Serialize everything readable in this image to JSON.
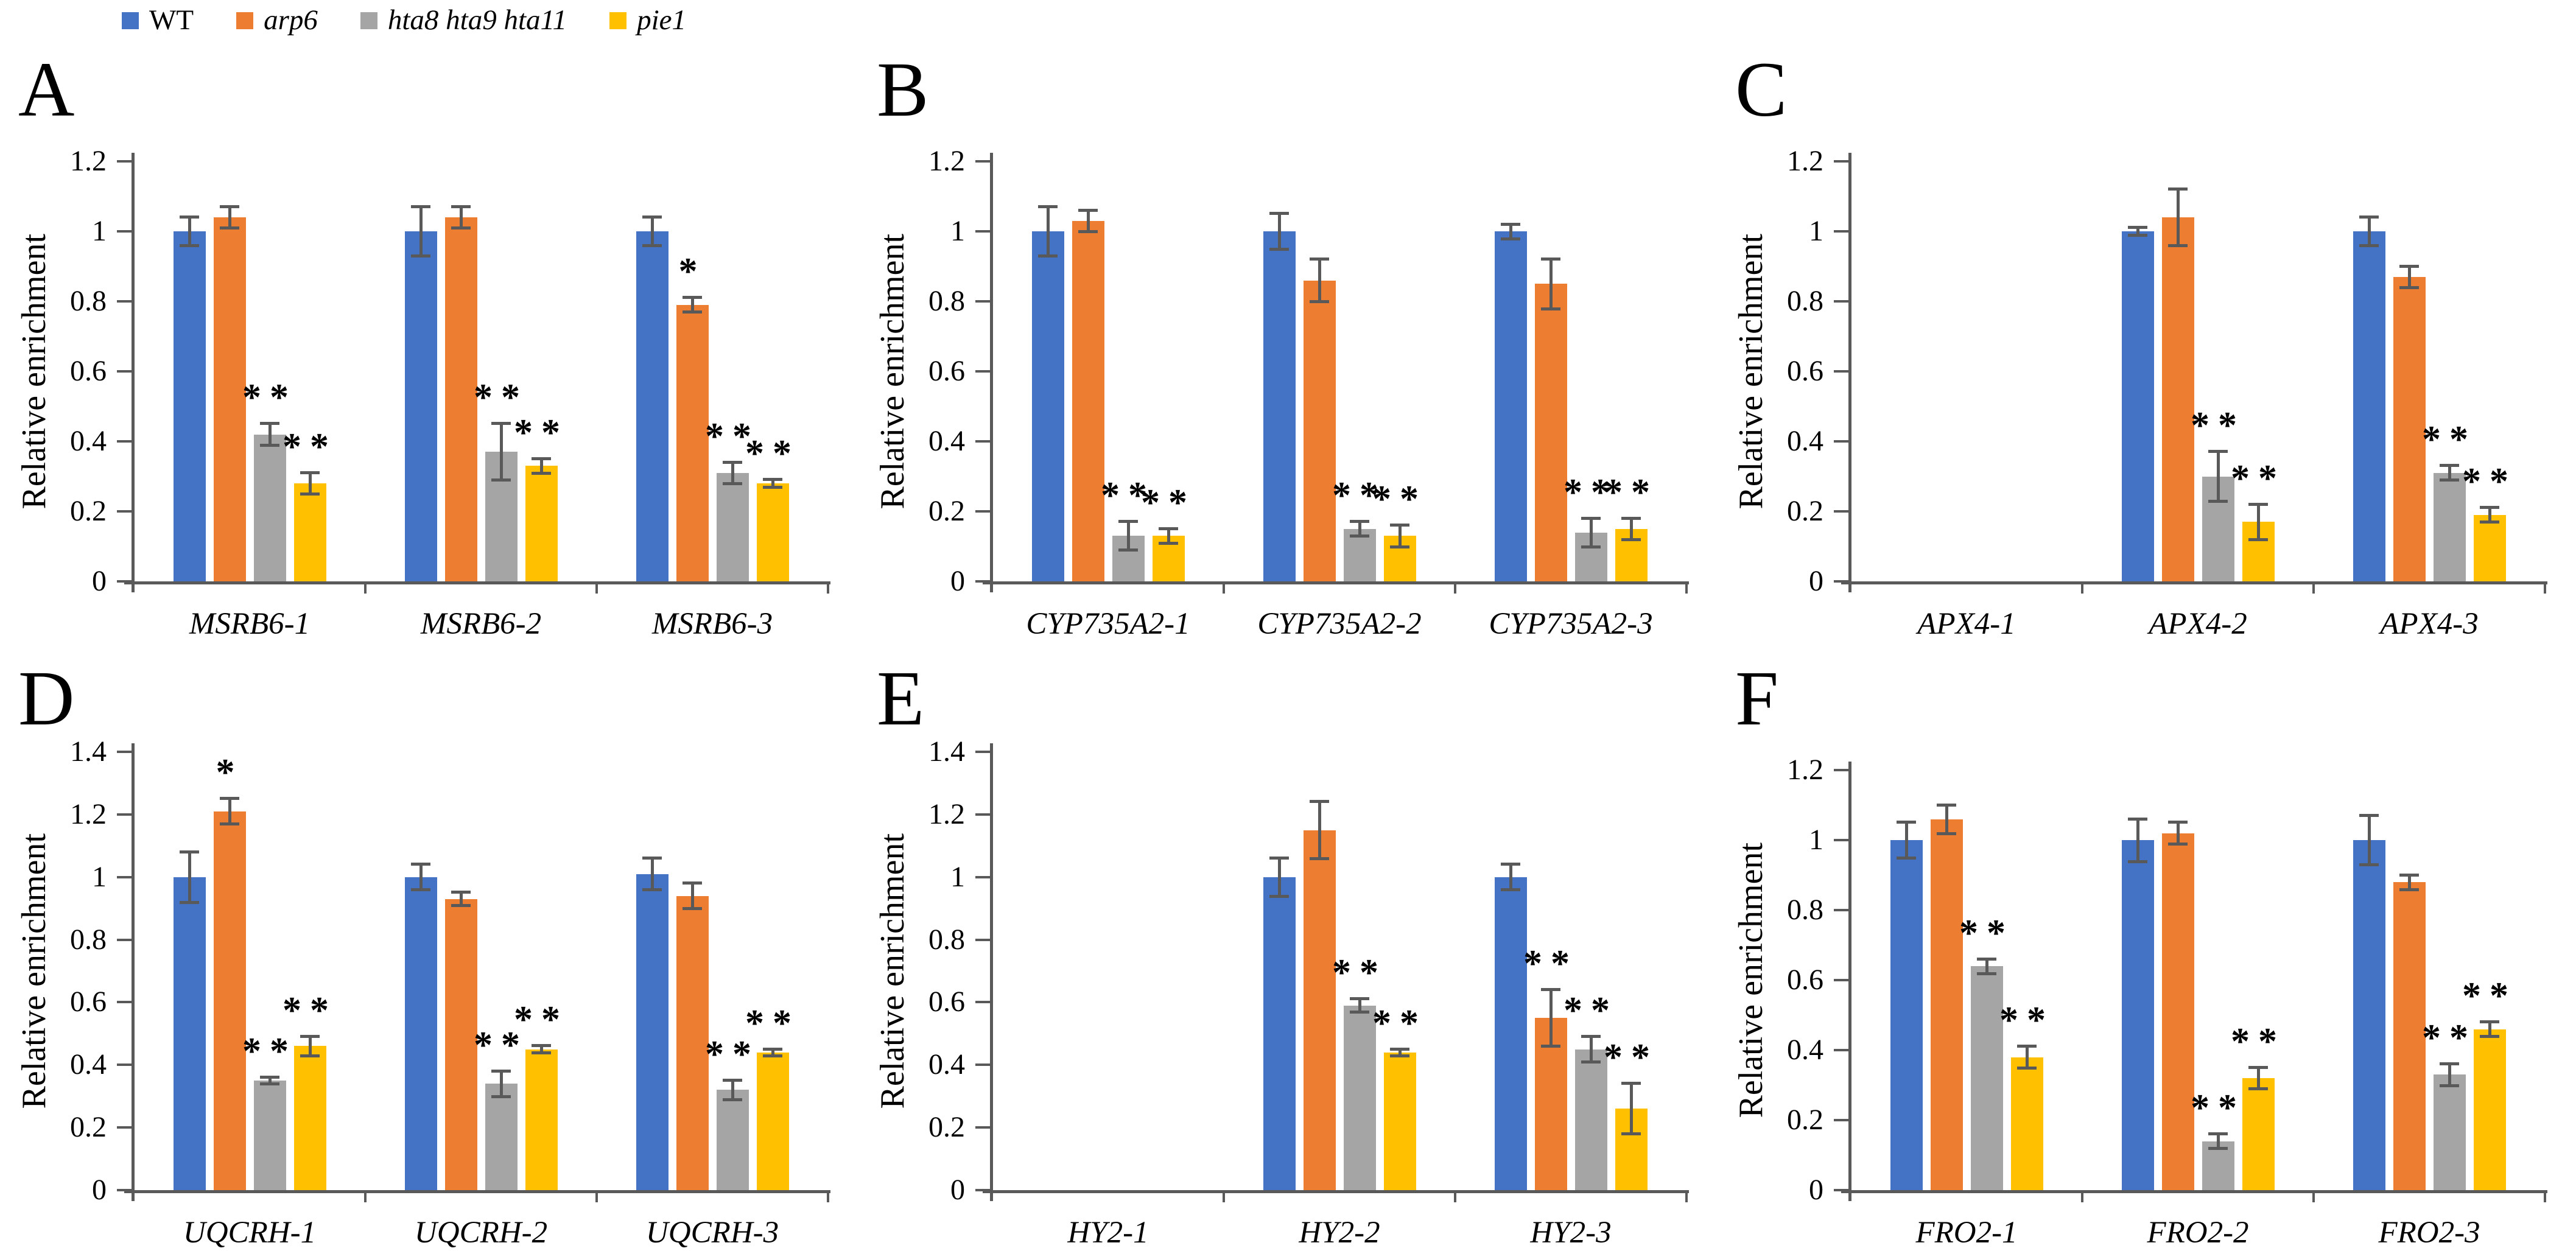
{
  "figure": {
    "background": "#ffffff"
  },
  "legend": {
    "position": "top-left",
    "items": [
      {
        "label": "WT",
        "color": "#4472C4",
        "italic": false
      },
      {
        "label": "arp6",
        "color": "#ED7D31",
        "italic": true
      },
      {
        "label": "hta8 hta9 hta11",
        "color": "#A5A5A5",
        "italic": true
      },
      {
        "label": "pie1",
        "color": "#FFC000",
        "italic": true
      }
    ]
  },
  "axis_style": {
    "line_color": "#595959",
    "error_bar_color": "#595959",
    "grid": false
  },
  "chart_data": [
    {
      "panel": "A",
      "type": "bar",
      "ylabel": "Relative enrichment",
      "ylim": [
        0,
        1.2
      ],
      "yticks": [
        "0",
        "0.2",
        "0.4",
        "0.6",
        "0.8",
        "1",
        "1.2"
      ],
      "categories": [
        "MSRB6-1",
        "MSRB6-2",
        "MSRB6-3"
      ],
      "series": [
        {
          "name": "WT",
          "color": "#4472C4",
          "values": [
            1.0,
            1.0,
            1.0
          ],
          "errors": [
            0.04,
            0.07,
            0.04
          ],
          "sig": [
            "",
            "",
            ""
          ]
        },
        {
          "name": "arp6",
          "color": "#ED7D31",
          "values": [
            1.04,
            1.04,
            0.79
          ],
          "errors": [
            0.03,
            0.03,
            0.02
          ],
          "sig": [
            "",
            "",
            "*"
          ]
        },
        {
          "name": "hta8 hta9 hta11",
          "color": "#A5A5A5",
          "values": [
            0.42,
            0.37,
            0.31
          ],
          "errors": [
            0.03,
            0.08,
            0.03
          ],
          "sig": [
            "**",
            "**",
            "**"
          ]
        },
        {
          "name": "pie1",
          "color": "#FFC000",
          "values": [
            0.28,
            0.33,
            0.28
          ],
          "errors": [
            0.03,
            0.02,
            0.01
          ],
          "sig": [
            "**",
            "**",
            "**"
          ]
        }
      ]
    },
    {
      "panel": "B",
      "type": "bar",
      "ylabel": "Relative enrichment",
      "ylim": [
        0,
        1.2
      ],
      "yticks": [
        "0",
        "0.2",
        "0.4",
        "0.6",
        "0.8",
        "1",
        "1.2"
      ],
      "categories": [
        "CYP735A2-1",
        "CYP735A2-2",
        "CYP735A2-3"
      ],
      "series": [
        {
          "name": "WT",
          "color": "#4472C4",
          "values": [
            1.0,
            1.0,
            1.0
          ],
          "errors": [
            0.07,
            0.05,
            0.02
          ],
          "sig": [
            "",
            "",
            ""
          ]
        },
        {
          "name": "arp6",
          "color": "#ED7D31",
          "values": [
            1.03,
            0.86,
            0.85
          ],
          "errors": [
            0.03,
            0.06,
            0.07
          ],
          "sig": [
            "",
            "",
            ""
          ]
        },
        {
          "name": "hta8 hta9 hta11",
          "color": "#A5A5A5",
          "values": [
            0.13,
            0.15,
            0.14
          ],
          "errors": [
            0.04,
            0.02,
            0.04
          ],
          "sig": [
            "**",
            "**",
            "**"
          ]
        },
        {
          "name": "pie1",
          "color": "#FFC000",
          "values": [
            0.13,
            0.13,
            0.15
          ],
          "errors": [
            0.02,
            0.03,
            0.03
          ],
          "sig": [
            "**",
            "**",
            "**"
          ]
        }
      ]
    },
    {
      "panel": "C",
      "type": "bar",
      "ylabel": "Relative enrichment",
      "ylim": [
        0,
        1.2
      ],
      "yticks": [
        "0",
        "0.2",
        "0.4",
        "0.6",
        "0.8",
        "1",
        "1.2"
      ],
      "categories": [
        "APX4-1",
        "APX4-2",
        "APX4-3"
      ],
      "series": [
        {
          "name": "WT",
          "color": "#4472C4",
          "values": [
            null,
            1.0,
            1.0
          ],
          "errors": [
            null,
            0.01,
            0.04
          ],
          "sig": [
            "",
            "",
            ""
          ]
        },
        {
          "name": "arp6",
          "color": "#ED7D31",
          "values": [
            null,
            1.04,
            0.87
          ],
          "errors": [
            null,
            0.08,
            0.03
          ],
          "sig": [
            "",
            "",
            ""
          ]
        },
        {
          "name": "hta8 hta9 hta11",
          "color": "#A5A5A5",
          "values": [
            null,
            0.3,
            0.31
          ],
          "errors": [
            null,
            0.07,
            0.02
          ],
          "sig": [
            "",
            "**",
            "**"
          ]
        },
        {
          "name": "pie1",
          "color": "#FFC000",
          "values": [
            null,
            0.17,
            0.19
          ],
          "errors": [
            null,
            0.05,
            0.02
          ],
          "sig": [
            "",
            "**",
            "**"
          ]
        }
      ]
    },
    {
      "panel": "D",
      "type": "bar",
      "ylabel": "Relative enrichment",
      "ylim": [
        0,
        1.4
      ],
      "yticks": [
        "0",
        "0.2",
        "0.4",
        "0.6",
        "0.8",
        "1",
        "1.2",
        "1.4"
      ],
      "categories": [
        "UQCRH-1",
        "UQCRH-2",
        "UQCRH-3"
      ],
      "series": [
        {
          "name": "WT",
          "color": "#4472C4",
          "values": [
            1.0,
            1.0,
            1.01
          ],
          "errors": [
            0.08,
            0.04,
            0.05
          ],
          "sig": [
            "",
            "",
            ""
          ]
        },
        {
          "name": "arp6",
          "color": "#ED7D31",
          "values": [
            1.21,
            0.93,
            0.94
          ],
          "errors": [
            0.04,
            0.02,
            0.04
          ],
          "sig": [
            "*",
            "",
            ""
          ]
        },
        {
          "name": "hta8 hta9 hta11",
          "color": "#A5A5A5",
          "values": [
            0.35,
            0.34,
            0.32
          ],
          "errors": [
            0.01,
            0.04,
            0.03
          ],
          "sig": [
            "**",
            "**",
            "**"
          ]
        },
        {
          "name": "pie1",
          "color": "#FFC000",
          "values": [
            0.46,
            0.45,
            0.44
          ],
          "errors": [
            0.03,
            0.01,
            0.01
          ],
          "sig": [
            "**",
            "**",
            "**"
          ]
        }
      ]
    },
    {
      "panel": "E",
      "type": "bar",
      "ylabel": "Relative enrichment",
      "ylim": [
        0,
        1.4
      ],
      "yticks": [
        "0",
        "0.2",
        "0.4",
        "0.6",
        "0.8",
        "1",
        "1.2",
        "1.4"
      ],
      "categories": [
        "HY2-1",
        "HY2-2",
        "HY2-3"
      ],
      "series": [
        {
          "name": "WT",
          "color": "#4472C4",
          "values": [
            null,
            1.0,
            1.0
          ],
          "errors": [
            null,
            0.06,
            0.04
          ],
          "sig": [
            "",
            "",
            ""
          ]
        },
        {
          "name": "arp6",
          "color": "#ED7D31",
          "values": [
            null,
            1.15,
            0.55
          ],
          "errors": [
            null,
            0.09,
            0.09
          ],
          "sig": [
            "",
            "",
            "**"
          ]
        },
        {
          "name": "hta8 hta9 hta11",
          "color": "#A5A5A5",
          "values": [
            null,
            0.59,
            0.45
          ],
          "errors": [
            null,
            0.02,
            0.04
          ],
          "sig": [
            "",
            "**",
            "**"
          ]
        },
        {
          "name": "pie1",
          "color": "#FFC000",
          "values": [
            null,
            0.44,
            0.26
          ],
          "errors": [
            null,
            0.01,
            0.08
          ],
          "sig": [
            "",
            "**",
            "**"
          ]
        }
      ]
    },
    {
      "panel": "F",
      "type": "bar",
      "ylabel": "Relative enrichment",
      "ylim": [
        0,
        1.2
      ],
      "yticks": [
        "0",
        "0.2",
        "0.4",
        "0.6",
        "0.8",
        "1",
        "1.2"
      ],
      "categories": [
        "FRO2-1",
        "FRO2-2",
        "FRO2-3"
      ],
      "series": [
        {
          "name": "WT",
          "color": "#4472C4",
          "values": [
            1.0,
            1.0,
            1.0
          ],
          "errors": [
            0.05,
            0.06,
            0.07
          ],
          "sig": [
            "",
            "",
            ""
          ]
        },
        {
          "name": "arp6",
          "color": "#ED7D31",
          "values": [
            1.06,
            1.02,
            0.88
          ],
          "errors": [
            0.04,
            0.03,
            0.02
          ],
          "sig": [
            "",
            "",
            ""
          ]
        },
        {
          "name": "hta8 hta9 hta11",
          "color": "#A5A5A5",
          "values": [
            0.64,
            0.14,
            0.33
          ],
          "errors": [
            0.02,
            0.02,
            0.03
          ],
          "sig": [
            "**",
            "**",
            "**"
          ]
        },
        {
          "name": "pie1",
          "color": "#FFC000",
          "values": [
            0.38,
            0.32,
            0.46
          ],
          "errors": [
            0.03,
            0.03,
            0.02
          ],
          "sig": [
            "**",
            "**",
            "**"
          ]
        }
      ]
    }
  ]
}
